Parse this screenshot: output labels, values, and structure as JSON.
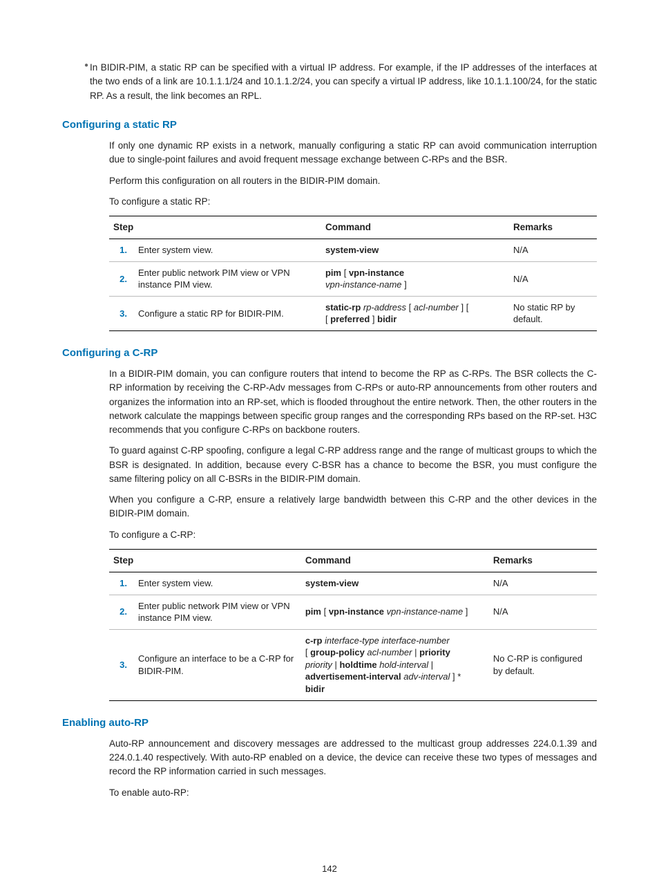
{
  "bullet": "In BIDIR-PIM, a static RP can be specified with a virtual IP address. For example, if the IP addresses of the interfaces at the two ends of a link are 10.1.1.1/24 and 10.1.1.2/24, you can specify a virtual IP address, like 10.1.1.100/24, for the static RP. As a result, the link becomes an RPL.",
  "sec1": {
    "heading": "Configuring a static RP",
    "p1": "If only one dynamic RP exists in a network, manually configuring a static RP can avoid communication interruption due to single-point failures and avoid frequent message exchange between C-RPs and the BSR.",
    "p2": "Perform this configuration on all routers in the BIDIR-PIM domain.",
    "p3": "To configure a static RP:",
    "table": {
      "headers": {
        "step": "Step",
        "cmd": "Command",
        "rem": "Remarks"
      },
      "rows": [
        {
          "n": "1.",
          "step": "Enter system view.",
          "cmd_bold1": "system-view",
          "rem": "N/A"
        },
        {
          "n": "2.",
          "step": "Enter public network PIM view or VPN instance PIM view.",
          "cmd_bold1": "pim",
          "cmd_plain1": " [ ",
          "cmd_bold2": "vpn-instance",
          "cmd_ital1": " vpn-instance-name",
          "cmd_plain2": " ]",
          "rem": "N/A"
        },
        {
          "n": "3.",
          "step": "Configure a static RP for BIDIR-PIM.",
          "cmd_bold1": "static-rp",
          "cmd_ital1": " rp-address",
          "cmd_plain1": " [ ",
          "cmd_ital2": "acl-number",
          "cmd_plain2": " ] [ ",
          "cmd_bold2": "preferred",
          "cmd_plain3": " ] ",
          "cmd_bold3": "bidir",
          "rem": "No static RP by default."
        }
      ]
    }
  },
  "sec2": {
    "heading": "Configuring a C-RP",
    "p1": "In a BIDIR-PIM domain, you can configure routers that intend to become the RP as C-RPs. The BSR collects the C-RP information by receiving the C-RP-Adv messages from C-RPs or auto-RP announcements from other routers and organizes the information into an RP-set, which is flooded throughout the entire network. Then, the other routers in the network calculate the mappings between specific group ranges and the corresponding RPs based on the RP-set. H3C recommends that you configure C-RPs on backbone routers.",
    "p2": "To guard against C-RP spoofing, configure a legal C-RP address range and the range of multicast groups to which the BSR is designated. In addition, because every C-BSR has a chance to become the BSR, you must configure the same filtering policy on all C-BSRs in the BIDIR-PIM domain.",
    "p3": "When you configure a C-RP, ensure a relatively large bandwidth between this C-RP and the other devices in the BIDIR-PIM domain.",
    "p4": "To configure a C-RP:",
    "table": {
      "headers": {
        "step": "Step",
        "cmd": "Command",
        "rem": "Remarks"
      },
      "rows": [
        {
          "n": "1.",
          "step": "Enter system view.",
          "cmd_bold1": "system-view",
          "rem": "N/A"
        },
        {
          "n": "2.",
          "step": "Enter public network PIM view or VPN instance PIM view.",
          "cmd_bold1": "pim",
          "cmd_plain1": " [ ",
          "cmd_bold2": "vpn-instance",
          "cmd_ital1": " vpn-instance-name",
          "cmd_plain2": " ]",
          "rem": "N/A"
        },
        {
          "n": "3.",
          "step": "Configure an interface to be a C-RP for BIDIR-PIM.",
          "cmd_bold1": "c-rp",
          "cmd_ital1": " interface-type interface-number",
          "cmd_plain1": " [ ",
          "cmd_bold2": "group-policy",
          "cmd_ital2": " acl-number",
          "cmd_plain2": " | ",
          "cmd_bold3": "priority",
          "cmd_ital3": " priority",
          "cmd_plain3": " | ",
          "cmd_bold4": "holdtime",
          "cmd_ital4": " hold-interval",
          "cmd_plain4": " | ",
          "cmd_bold5": "advertisement-interval",
          "cmd_ital5": " adv-interval",
          "cmd_plain5": " ] * ",
          "cmd_bold6": "bidir",
          "rem": "No C-RP is configured by default."
        }
      ]
    }
  },
  "sec3": {
    "heading": "Enabling auto-RP",
    "p1": "Auto-RP announcement and discovery messages are addressed to the multicast group addresses 224.0.1.39 and 224.0.1.40 respectively. With auto-RP enabled on a device, the device can receive these two types of messages and record the RP information carried in such messages.",
    "p2": "To enable auto-RP:"
  },
  "pagenum": "142"
}
